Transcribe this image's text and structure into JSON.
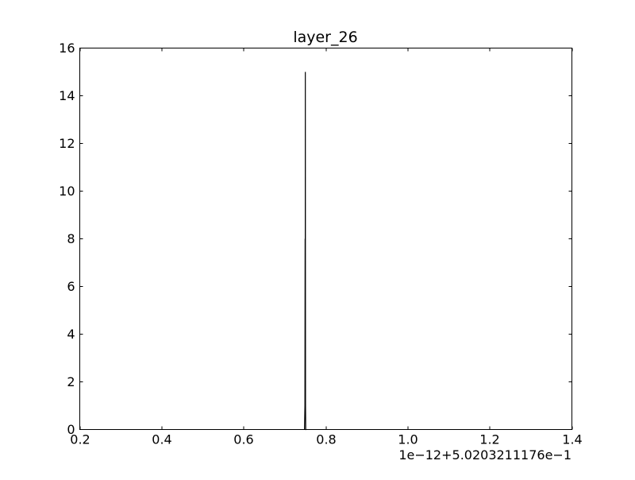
{
  "chart_data": {
    "type": "line",
    "title": "layer_26",
    "xlabel": "",
    "ylabel": "",
    "x_offset_label": "1e−12+5.0203211176e−1",
    "xlim": [
      0.2,
      1.4
    ],
    "ylim": [
      0,
      16
    ],
    "x_ticks": [
      0.2,
      0.4,
      0.6,
      0.8,
      1.0,
      1.2,
      1.4
    ],
    "x_tick_labels": [
      "0.2",
      "0.4",
      "0.6",
      "0.8",
      "1.0",
      "1.2",
      "1.4"
    ],
    "y_ticks": [
      0,
      2,
      4,
      6,
      8,
      10,
      12,
      14,
      16
    ],
    "y_tick_labels": [
      "0",
      "2",
      "4",
      "6",
      "8",
      "10",
      "12",
      "14",
      "16"
    ],
    "grid": false,
    "line_color": "#000000",
    "series": [
      {
        "x": [
          0.748,
          0.749,
          0.7495,
          0.7498,
          0.75,
          0.7502,
          0.7505,
          0.751,
          0.752
        ],
        "y": [
          0,
          1,
          8,
          5,
          15,
          8,
          1,
          0,
          0
        ]
      }
    ]
  }
}
